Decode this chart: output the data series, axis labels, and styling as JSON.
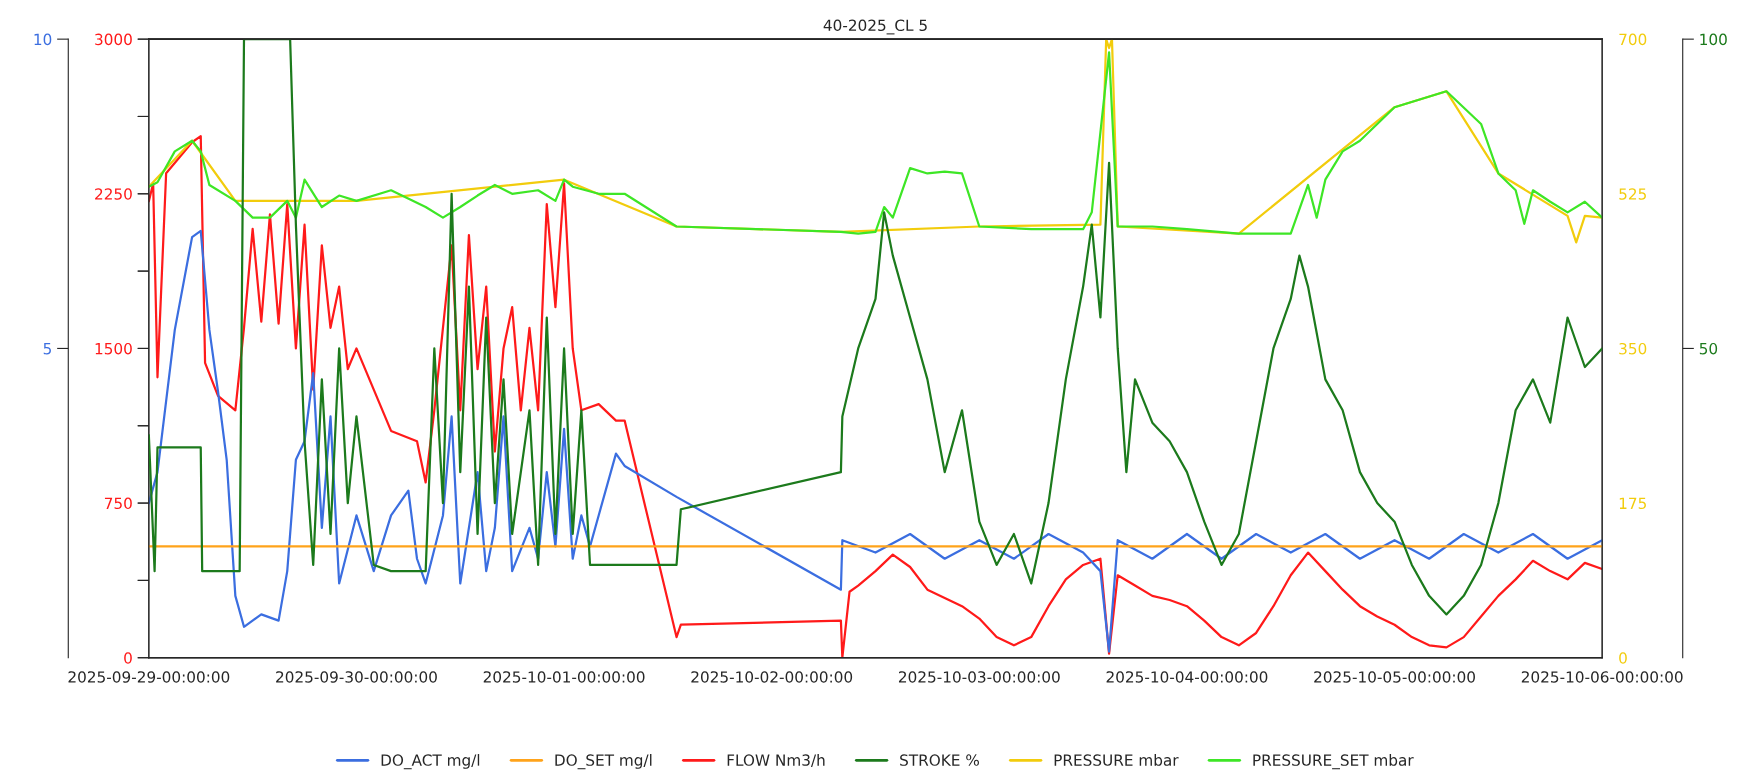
{
  "chart_data": [
    {
      "type": "line",
      "title": "40-2025_CL 5",
      "xlim": [
        "2025-09-29",
        "2025-10-06"
      ],
      "xticks": [
        {
          "value": "2025-09-29",
          "label": "2025-09-29-00:00:00"
        },
        {
          "value": "2025-09-30",
          "label": "2025-09-30-00:00:00"
        },
        {
          "value": "2025-10-01",
          "label": "2025-10-01-00:00:00"
        },
        {
          "value": "2025-10-02",
          "label": "2025-10-02-00:00:00"
        },
        {
          "value": "2025-10-03",
          "label": "2025-10-03-00:00:00"
        },
        {
          "value": "2025-10-04",
          "label": "2025-10-04-00:00:00"
        },
        {
          "value": "2025-10-05",
          "label": "2025-10-05-00:00:00"
        },
        {
          "value": "2025-10-06",
          "label": "2025-10-06-00:00:00"
        }
      ],
      "ylim": [
        0,
        3000
      ],
      "yticks": [
        0,
        {
          "value": 375,
          "label": null
        },
        750,
        {
          "value": 1125,
          "label": null
        },
        1500,
        {
          "value": 1875,
          "label": null
        },
        2250,
        {
          "value": 2625,
          "label": null
        },
        3000
      ],
      "y2lim": [
        0,
        10
      ],
      "y2ticks": [
        5,
        10
      ],
      "grid": false,
      "legend": "bottom",
      "marker": "none",
      "line_style": "solid",
      "series": [
        {
          "name": "DO_ACT mg/l",
          "color": "#3b6ee0",
          "axis": "y2",
          "x": [
            "2025-09-29T00:00",
            "2025-09-29T01:00",
            "2025-09-29T03:00",
            "2025-09-29T05:00",
            "2025-09-29T06:00",
            "2025-09-29T07:00",
            "2025-09-29T08:00",
            "2025-09-29T09:00",
            "2025-09-29T10:00",
            "2025-09-29T11:00",
            "2025-09-29T13:00",
            "2025-09-29T15:00",
            "2025-09-29T16:00",
            "2025-09-29T17:00",
            "2025-09-29T18:00",
            "2025-09-29T19:00",
            "2025-09-29T20:00",
            "2025-09-29T21:00",
            "2025-09-29T22:00",
            "2025-09-30T00:00",
            "2025-09-30T02:00",
            "2025-09-30T04:00",
            "2025-09-30T06:00",
            "2025-09-30T07:00",
            "2025-09-30T08:00",
            "2025-09-30T10:00",
            "2025-09-30T11:00",
            "2025-09-30T12:00",
            "2025-09-30T14:00",
            "2025-09-30T15:00",
            "2025-09-30T16:00",
            "2025-09-30T17:00",
            "2025-09-30T18:00",
            "2025-09-30T20:00",
            "2025-09-30T21:00",
            "2025-09-30T22:00",
            "2025-09-30T23:00",
            "2025-10-01T00:00",
            "2025-10-01T01:00",
            "2025-10-01T02:00",
            "2025-10-01T03:00",
            "2025-10-01T04:00",
            "2025-10-01T06:00",
            "2025-10-01T07:00",
            "2025-10-01T13:00",
            "2025-10-02T08:00",
            "2025-10-02T08:10",
            "2025-10-02T12:00",
            "2025-10-02T16:00",
            "2025-10-02T20:00",
            "2025-10-03T00:00",
            "2025-10-03T04:00",
            "2025-10-03T08:00",
            "2025-10-03T12:00",
            "2025-10-03T14:00",
            "2025-10-03T15:00",
            "2025-10-03T16:00",
            "2025-10-03T20:00",
            "2025-10-04T00:00",
            "2025-10-04T04:00",
            "2025-10-04T08:00",
            "2025-10-04T12:00",
            "2025-10-04T16:00",
            "2025-10-04T20:00",
            "2025-10-05T00:00",
            "2025-10-05T04:00",
            "2025-10-05T08:00",
            "2025-10-05T12:00",
            "2025-10-05T16:00",
            "2025-10-05T20:00",
            "2025-10-06T00:00"
          ],
          "values": [
            2.5,
            3,
            5.3,
            6.8,
            6.9,
            5.3,
            4.3,
            3.2,
            1,
            0.5,
            0.7,
            0.6,
            1.4,
            3.2,
            3.5,
            4.6,
            2.1,
            3.9,
            1.2,
            2.3,
            1.4,
            2.3,
            2.7,
            1.6,
            1.2,
            2.3,
            3.9,
            1.2,
            3,
            1.4,
            2.1,
            3.9,
            1.4,
            2.1,
            1.6,
            3,
            1.8,
            3.7,
            1.6,
            2.3,
            1.8,
            2.3,
            3.3,
            3.1,
            2.6,
            1.1,
            1.9,
            1.7,
            2,
            1.6,
            1.9,
            1.6,
            2,
            1.7,
            1.4,
            0.1,
            1.9,
            1.6,
            2,
            1.6,
            2,
            1.7,
            2,
            1.6,
            1.9,
            1.6,
            2,
            1.7,
            2,
            1.6,
            1.9
          ]
        },
        {
          "name": "DO_SET mg/l",
          "color": "#ffa31a",
          "axis": "y2",
          "x": [
            "2025-09-29T00:00",
            "2025-10-06T00:00"
          ],
          "values": [
            1.8,
            1.8
          ]
        },
        {
          "name": "FLOW Nm3/h",
          "color": "#ff1a1a",
          "x": [
            "2025-09-29T00:00",
            "2025-09-29T00:30",
            "2025-09-29T01:00",
            "2025-09-29T02:00",
            "2025-09-29T05:00",
            "2025-09-29T06:00",
            "2025-09-29T06:30",
            "2025-09-29T08:00",
            "2025-09-29T10:00",
            "2025-09-29T11:00",
            "2025-09-29T12:00",
            "2025-09-29T13:00",
            "2025-09-29T14:00",
            "2025-09-29T15:00",
            "2025-09-29T16:00",
            "2025-09-29T17:00",
            "2025-09-29T18:00",
            "2025-09-29T19:00",
            "2025-09-29T20:00",
            "2025-09-29T21:00",
            "2025-09-29T22:00",
            "2025-09-29T23:00",
            "2025-09-30T00:00",
            "2025-09-30T02:00",
            "2025-09-30T04:00",
            "2025-09-30T07:00",
            "2025-09-30T08:00",
            "2025-09-30T09:00",
            "2025-09-30T10:00",
            "2025-09-30T11:00",
            "2025-09-30T12:00",
            "2025-09-30T13:00",
            "2025-09-30T14:00",
            "2025-09-30T15:00",
            "2025-09-30T16:00",
            "2025-09-30T17:00",
            "2025-09-30T18:00",
            "2025-09-30T19:00",
            "2025-09-30T20:00",
            "2025-09-30T21:00",
            "2025-09-30T22:00",
            "2025-09-30T23:00",
            "2025-10-01T00:00",
            "2025-10-01T01:00",
            "2025-10-01T02:00",
            "2025-10-01T04:00",
            "2025-10-01T06:00",
            "2025-10-01T07:00",
            "2025-10-01T13:00",
            "2025-10-01T13:30",
            "2025-10-02T08:00",
            "2025-10-02T08:10",
            "2025-10-02T09:00",
            "2025-10-02T10:00",
            "2025-10-02T12:00",
            "2025-10-02T14:00",
            "2025-10-02T16:00",
            "2025-10-02T18:00",
            "2025-10-02T20:00",
            "2025-10-02T22:00",
            "2025-10-03T00:00",
            "2025-10-03T02:00",
            "2025-10-03T04:00",
            "2025-10-03T06:00",
            "2025-10-03T08:00",
            "2025-10-03T10:00",
            "2025-10-03T12:00",
            "2025-10-03T14:00",
            "2025-10-03T15:00",
            "2025-10-03T16:00",
            "2025-10-03T18:00",
            "2025-10-03T20:00",
            "2025-10-03T22:00",
            "2025-10-04T00:00",
            "2025-10-04T02:00",
            "2025-10-04T04:00",
            "2025-10-04T06:00",
            "2025-10-04T08:00",
            "2025-10-04T10:00",
            "2025-10-04T12:00",
            "2025-10-04T14:00",
            "2025-10-04T16:00",
            "2025-10-04T18:00",
            "2025-10-04T20:00",
            "2025-10-04T22:00",
            "2025-10-05T00:00",
            "2025-10-05T02:00",
            "2025-10-05T04:00",
            "2025-10-05T06:00",
            "2025-10-05T08:00",
            "2025-10-05T10:00",
            "2025-10-05T12:00",
            "2025-10-05T14:00",
            "2025-10-05T16:00",
            "2025-10-05T18:00",
            "2025-10-05T20:00",
            "2025-10-05T22:00",
            "2025-10-06T00:00"
          ],
          "values": [
            2214,
            2300,
            1360,
            2350,
            2500,
            2530,
            1430,
            1270,
            1200,
            1600,
            2080,
            1630,
            2150,
            1620,
            2200,
            1500,
            2100,
            1300,
            2000,
            1600,
            1800,
            1400,
            1500,
            1300,
            1100,
            1050,
            850,
            1200,
            1600,
            2000,
            1200,
            2050,
            1400,
            1800,
            1000,
            1500,
            1700,
            1200,
            1600,
            1200,
            2200,
            1700,
            2300,
            1500,
            1200,
            1230,
            1150,
            1150,
            100,
            160,
            180,
            0,
            320,
            350,
            420,
            500,
            440,
            330,
            290,
            250,
            190,
            100,
            60,
            100,
            250,
            380,
            450,
            480,
            20,
            400,
            350,
            300,
            280,
            250,
            180,
            100,
            60,
            120,
            250,
            400,
            510,
            420,
            330,
            250,
            200,
            160,
            100,
            60,
            50,
            100,
            200,
            300,
            380,
            470,
            420,
            380,
            460,
            430
          ]
        }
      ]
    },
    {
      "type": "line",
      "xlim": [
        "2025-09-29",
        "2025-10-06"
      ],
      "tick_labels": "y",
      "ylim": [
        0,
        700
      ],
      "yticks": [
        0,
        {
          "value": 87.5,
          "label": null
        },
        175,
        {
          "value": 262.5,
          "label": null
        },
        350,
        {
          "value": 437.5,
          "label": null
        },
        525,
        {
          "value": 612.5,
          "label": null
        },
        700
      ],
      "y2lim": [
        0,
        100
      ],
      "y2ticks": [
        50,
        100
      ],
      "grid": false,
      "legend": "bottom",
      "marker": "none",
      "line_style": "solid",
      "series": [
        {
          "name": "STROKE %",
          "color": "#1c7a1c",
          "axis": "y2",
          "x": [
            "2025-09-29T00:00",
            "2025-09-29T00:40",
            "2025-09-29T01:00",
            "2025-09-29T06:00",
            "2025-09-29T06:10",
            "2025-09-29T10:30",
            "2025-09-29T11:00",
            "2025-09-29T16:20",
            "2025-09-29T17:00",
            "2025-09-29T18:00",
            "2025-09-29T19:00",
            "2025-09-29T20:00",
            "2025-09-29T21:00",
            "2025-09-29T22:00",
            "2025-09-29T23:00",
            "2025-09-30T00:00",
            "2025-09-30T02:00",
            "2025-09-30T04:00",
            "2025-09-30T08:00",
            "2025-09-30T09:00",
            "2025-09-30T10:00",
            "2025-09-30T11:00",
            "2025-09-30T12:00",
            "2025-09-30T13:00",
            "2025-09-30T14:00",
            "2025-09-30T15:00",
            "2025-09-30T16:00",
            "2025-09-30T17:00",
            "2025-09-30T18:00",
            "2025-09-30T20:00",
            "2025-09-30T21:00",
            "2025-09-30T22:00",
            "2025-09-30T23:00",
            "2025-10-01T00:00",
            "2025-10-01T01:00",
            "2025-10-01T02:00",
            "2025-10-01T03:00",
            "2025-10-01T04:00",
            "2025-10-01T13:00",
            "2025-10-01T13:30",
            "2025-10-02T08:00",
            "2025-10-02T08:10",
            "2025-10-02T10:00",
            "2025-10-02T12:00",
            "2025-10-02T13:00",
            "2025-10-02T14:00",
            "2025-10-02T16:00",
            "2025-10-02T18:00",
            "2025-10-02T20:00",
            "2025-10-02T22:00",
            "2025-10-03T00:00",
            "2025-10-03T02:00",
            "2025-10-03T04:00",
            "2025-10-03T06:00",
            "2025-10-03T08:00",
            "2025-10-03T10:00",
            "2025-10-03T12:00",
            "2025-10-03T13:00",
            "2025-10-03T14:00",
            "2025-10-03T15:00",
            "2025-10-03T16:00",
            "2025-10-03T17:00",
            "2025-10-03T18:00",
            "2025-10-03T20:00",
            "2025-10-03T22:00",
            "2025-10-04T00:00",
            "2025-10-04T02:00",
            "2025-10-04T04:00",
            "2025-10-04T06:00",
            "2025-10-04T08:00",
            "2025-10-04T10:00",
            "2025-10-04T12:00",
            "2025-10-04T13:00",
            "2025-10-04T14:00",
            "2025-10-04T16:00",
            "2025-10-04T18:00",
            "2025-10-04T20:00",
            "2025-10-04T22:00",
            "2025-10-05T00:00",
            "2025-10-05T02:00",
            "2025-10-05T04:00",
            "2025-10-05T06:00",
            "2025-10-05T08:00",
            "2025-10-05T10:00",
            "2025-10-05T12:00",
            "2025-10-05T14:00",
            "2025-10-05T16:00",
            "2025-10-05T18:00",
            "2025-10-05T20:00",
            "2025-10-05T22:00",
            "2025-10-06T00:00"
          ],
          "values": [
            36,
            14,
            34,
            34,
            14,
            14,
            100,
            100,
            70,
            35,
            15,
            45,
            20,
            50,
            25,
            39,
            15,
            14,
            14,
            50,
            25,
            75,
            30,
            60,
            20,
            55,
            25,
            45,
            20,
            40,
            15,
            55,
            20,
            50,
            20,
            40,
            15,
            15,
            15,
            24,
            30,
            39,
            50,
            58,
            72,
            65,
            55,
            45,
            30,
            40,
            22,
            15,
            20,
            12,
            25,
            45,
            60,
            70,
            55,
            80,
            50,
            30,
            45,
            38,
            35,
            30,
            22,
            15,
            20,
            35,
            50,
            58,
            65,
            60,
            45,
            40,
            30,
            25,
            22,
            15,
            10,
            7,
            10,
            15,
            25,
            40,
            45,
            38,
            55,
            47,
            50
          ]
        },
        {
          "name": "PRESSURE mbar",
          "color": "#f2cc0c",
          "x": [
            "2025-09-29T00:00",
            "2025-09-29T05:00",
            "2025-09-29T10:00",
            "2025-09-30T00:00",
            "2025-10-01T00:00",
            "2025-10-01T13:00",
            "2025-10-02T08:00",
            "2025-10-03T00:00",
            "2025-10-03T14:00",
            "2025-10-03T14:40",
            "2025-10-03T15:00",
            "2025-10-03T15:20",
            "2025-10-03T16:00",
            "2025-10-04T06:00",
            "2025-10-05T00:00",
            "2025-10-05T06:00",
            "2025-10-05T12:00",
            "2025-10-05T20:00",
            "2025-10-05T21:00",
            "2025-10-05T22:00",
            "2025-10-06T00:00"
          ],
          "values": [
            533,
            585,
            517,
            517,
            541,
            488,
            482,
            488,
            490,
            700,
            690,
            700,
            488,
            480,
            623,
            641,
            548,
            500,
            470,
            500,
            498
          ]
        },
        {
          "name": "PRESSURE_SET mbar",
          "color": "#3ee626",
          "x": [
            "2025-09-29T00:00",
            "2025-09-29T01:00",
            "2025-09-29T03:00",
            "2025-09-29T05:00",
            "2025-09-29T06:00",
            "2025-09-29T07:00",
            "2025-09-29T10:00",
            "2025-09-29T12:00",
            "2025-09-29T14:00",
            "2025-09-29T16:00",
            "2025-09-29T17:00",
            "2025-09-29T18:00",
            "2025-09-29T20:00",
            "2025-09-29T22:00",
            "2025-09-30T00:00",
            "2025-09-30T04:00",
            "2025-09-30T08:00",
            "2025-09-30T10:00",
            "2025-09-30T12:00",
            "2025-09-30T14:00",
            "2025-09-30T16:00",
            "2025-09-30T18:00",
            "2025-09-30T21:00",
            "2025-09-30T23:00",
            "2025-10-01T00:00",
            "2025-10-01T01:00",
            "2025-10-01T04:00",
            "2025-10-01T07:00",
            "2025-10-01T13:00",
            "2025-10-02T08:00",
            "2025-10-02T10:00",
            "2025-10-02T12:00",
            "2025-10-02T13:00",
            "2025-10-02T14:00",
            "2025-10-02T16:00",
            "2025-10-02T18:00",
            "2025-10-02T20:00",
            "2025-10-02T22:00",
            "2025-10-03T00:00",
            "2025-10-03T06:00",
            "2025-10-03T12:00",
            "2025-10-03T13:00",
            "2025-10-03T15:00",
            "2025-10-03T16:00",
            "2025-10-03T20:00",
            "2025-10-04T00:00",
            "2025-10-04T06:00",
            "2025-10-04T12:00",
            "2025-10-04T14:00",
            "2025-10-04T15:00",
            "2025-10-04T16:00",
            "2025-10-04T18:00",
            "2025-10-04T20:00",
            "2025-10-05T00:00",
            "2025-10-05T06:00",
            "2025-10-05T10:00",
            "2025-10-05T12:00",
            "2025-10-05T14:00",
            "2025-10-05T15:00",
            "2025-10-05T16:00",
            "2025-10-05T18:00",
            "2025-10-05T20:00",
            "2025-10-05T22:00",
            "2025-10-06T00:00"
          ],
          "values": [
            533,
            538,
            573,
            585,
            573,
            535,
            517,
            498,
            498,
            517,
            498,
            541,
            510,
            523,
            517,
            529,
            510,
            498,
            510,
            523,
            535,
            525,
            529,
            517,
            541,
            533,
            525,
            525,
            488,
            482,
            480,
            482,
            510,
            498,
            554,
            548,
            550,
            548,
            488,
            485,
            485,
            504,
            685,
            488,
            488,
            485,
            480,
            480,
            535,
            498,
            541,
            573,
            585,
            623,
            641,
            604,
            548,
            529,
            491,
            529,
            516,
            504,
            516,
            498
          ]
        }
      ]
    }
  ]
}
